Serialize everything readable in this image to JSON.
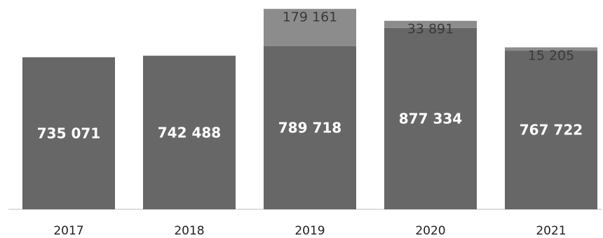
{
  "chart_data": {
    "type": "bar",
    "stacked": true,
    "categories": [
      "2017",
      "2018",
      "2019",
      "2020",
      "2021"
    ],
    "series": [
      {
        "color": "#676767",
        "values": [
          735071,
          742488,
          789718,
          877334,
          767722
        ],
        "labels": [
          "735 071",
          "742 488",
          "789 718",
          "877 334",
          "767 722"
        ]
      },
      {
        "color": "#8c8c8c",
        "values": [
          0,
          0,
          179161,
          33891,
          15205
        ],
        "labels": [
          "",
          "",
          "179 161",
          "33 891",
          "15 205"
        ]
      }
    ],
    "title": "",
    "xlabel": "",
    "ylabel": "",
    "ylim": [
      0,
      1000000
    ],
    "grid": false,
    "legend": "none"
  }
}
